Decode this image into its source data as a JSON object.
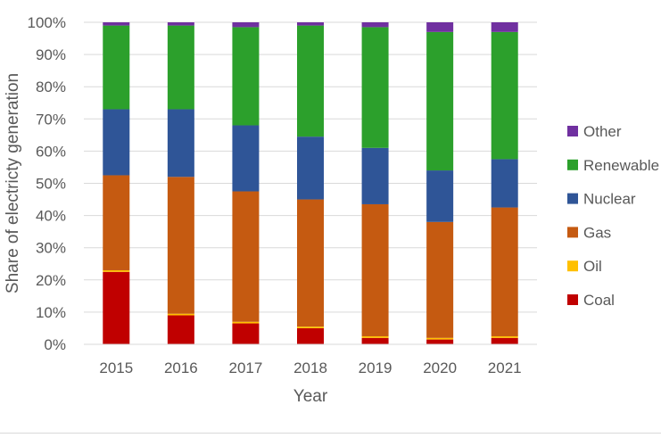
{
  "chart_data": {
    "type": "bar",
    "stacked": true,
    "percent": true,
    "xlabel": "Year",
    "ylabel": "Share of electricty generation",
    "ylim": [
      0,
      100
    ],
    "yticks": [
      "0%",
      "10%",
      "20%",
      "30%",
      "40%",
      "50%",
      "60%",
      "70%",
      "80%",
      "90%",
      "100%"
    ],
    "categories": [
      "2015",
      "2016",
      "2017",
      "2018",
      "2019",
      "2020",
      "2021"
    ],
    "series": [
      {
        "name": "Coal",
        "color": "#c00000",
        "values": [
          22.5,
          9,
          6.5,
          5,
          2,
          1.5,
          2
        ]
      },
      {
        "name": "Oil",
        "color": "#ffc000",
        "values": [
          0.5,
          0.5,
          0.5,
          0.5,
          0.5,
          0.5,
          0.5
        ]
      },
      {
        "name": "Gas",
        "color": "#c55a11",
        "values": [
          29.5,
          42.5,
          40.5,
          39.5,
          41,
          36,
          40
        ]
      },
      {
        "name": "Nuclear",
        "color": "#2f5597",
        "values": [
          20.5,
          21,
          20.5,
          19.5,
          17.5,
          16,
          15
        ]
      },
      {
        "name": "Renewable",
        "color": "#2ca02c",
        "values": [
          26,
          26,
          30.5,
          34.5,
          37.5,
          43,
          39.5
        ]
      },
      {
        "name": "Other",
        "color": "#7030a0",
        "values": [
          1,
          1,
          1.5,
          1,
          1.5,
          3,
          3
        ]
      }
    ],
    "legend_position": "right",
    "grid": true
  }
}
